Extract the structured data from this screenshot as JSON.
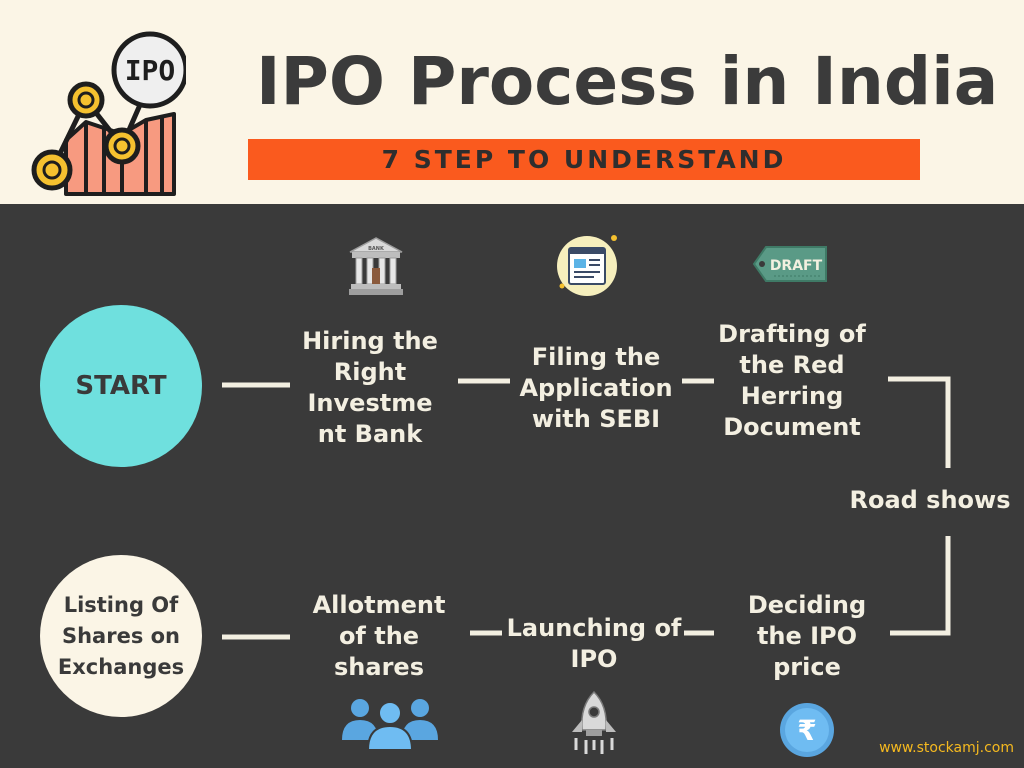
{
  "header": {
    "logo_text": "IPO",
    "title": "IPO Process in India",
    "subtitle": "7 STEP TO UNDERSTAND"
  },
  "steps": {
    "start": "START",
    "hiring": "Hiring the Right Investme nt Bank",
    "filing": "Filing the Application with SEBI",
    "drafting": "Drafting of the Red Herring Document",
    "roadshows": "Road shows",
    "deciding": "Deciding the IPO price",
    "launching": "Launching of IPO",
    "allotment": "Allotment of the shares",
    "listing": "Listing Of Shares on Exchanges"
  },
  "icons": {
    "bank_label": "BANK",
    "draft_label": "DRAFT",
    "rupee_symbol": "₹"
  },
  "footer": {
    "website": "www.stockamj.com"
  },
  "colors": {
    "header_bg": "#fbf5e6",
    "dark_bg": "#3a3a3a",
    "accent_orange": "#fa5a1e",
    "start_circle": "#6fe0de",
    "listing_circle": "#fbf5e6",
    "text_light": "#f3efe1",
    "website_text": "#f5b91f"
  }
}
